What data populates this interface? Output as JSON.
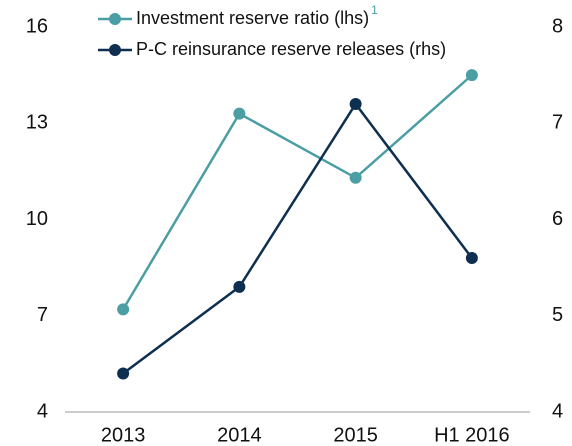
{
  "chart_data": {
    "type": "line",
    "categories": [
      "2013",
      "2014",
      "2015",
      "H1 2016"
    ],
    "series": [
      {
        "name": "Investment reserve ratio (lhs)",
        "footnote": "1",
        "color": "#4a9ea4",
        "values": [
          7.2,
          13.3,
          11.3,
          14.5
        ]
      },
      {
        "name": "P-C reinsurance reserve releases (rhs)",
        "color": "#0e2f4f",
        "axis": "y2",
        "values": [
          4.4,
          5.3,
          7.2,
          5.6
        ]
      }
    ],
    "ylim": [
      4,
      16
    ],
    "yticks": [
      4,
      7,
      10,
      13,
      16
    ],
    "y2lim": [
      4,
      8
    ],
    "y2ticks": [
      4,
      5,
      6,
      7,
      8
    ],
    "grid": false,
    "legend": "top"
  }
}
